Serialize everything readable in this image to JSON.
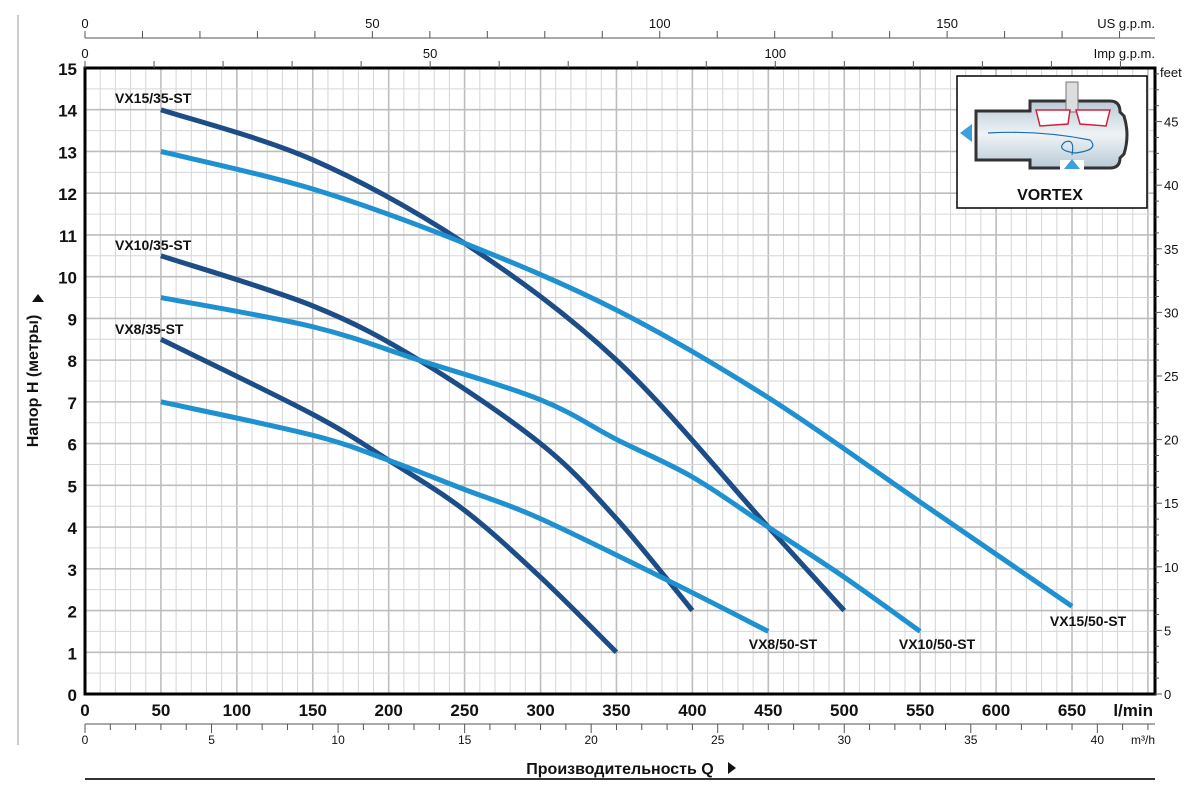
{
  "chart_data": {
    "type": "line",
    "title": "",
    "xlabel": "Производительность Q",
    "ylabel": "Напор H (метры)",
    "x_unit": "l/min",
    "xlim": [
      0,
      705
    ],
    "ylim": [
      0,
      15
    ],
    "grid": true,
    "x_ticks": [
      0,
      50,
      100,
      150,
      200,
      250,
      300,
      350,
      400,
      450,
      500,
      550,
      600,
      650
    ],
    "y_ticks": [
      0,
      1,
      2,
      3,
      4,
      5,
      6,
      7,
      8,
      9,
      10,
      11,
      12,
      13,
      14,
      15
    ],
    "secondary_axes": {
      "us_gpm": {
        "label": "US g.p.m.",
        "ticks": [
          0,
          50,
          100,
          150
        ]
      },
      "imp_gpm": {
        "label": "Imp g.p.m.",
        "ticks": [
          0,
          50,
          100
        ]
      },
      "m3h": {
        "label": "m³/h",
        "ticks": [
          0,
          5,
          10,
          15,
          20,
          25,
          30,
          35,
          40
        ]
      },
      "feet": {
        "label": "feet",
        "ticks": [
          0,
          5,
          10,
          15,
          20,
          25,
          30,
          35,
          40,
          45
        ]
      }
    },
    "series": [
      {
        "name": "VX15/35-ST",
        "color": "#1c4d86",
        "points": [
          [
            50,
            14
          ],
          [
            150,
            12.8
          ],
          [
            250,
            10.8
          ],
          [
            350,
            8
          ],
          [
            450,
            4
          ],
          [
            500,
            2
          ]
        ]
      },
      {
        "name": "VX15/50-ST",
        "color": "#1f91d0",
        "points": [
          [
            50,
            13
          ],
          [
            150,
            12.1
          ],
          [
            250,
            10.8
          ],
          [
            350,
            9.2
          ],
          [
            450,
            7.1
          ],
          [
            550,
            4.6
          ],
          [
            650,
            2.1
          ]
        ]
      },
      {
        "name": "VX10/35-ST",
        "color": "#1c4d86",
        "points": [
          [
            50,
            10.5
          ],
          [
            150,
            9.3
          ],
          [
            220,
            8
          ],
          [
            300,
            6
          ],
          [
            350,
            4.2
          ],
          [
            400,
            2
          ]
        ]
      },
      {
        "name": "VX10/50-ST",
        "color": "#1f91d0",
        "points": [
          [
            50,
            9.5
          ],
          [
            150,
            8.8
          ],
          [
            220,
            8
          ],
          [
            300,
            7.05
          ],
          [
            350,
            6.1
          ],
          [
            400,
            5.2
          ],
          [
            450,
            4
          ],
          [
            500,
            2.8
          ],
          [
            550,
            1.5
          ]
        ]
      },
      {
        "name": "VX8/35-ST",
        "color": "#1c4d86",
        "points": [
          [
            50,
            8.5
          ],
          [
            150,
            6.7
          ],
          [
            200,
            5.6
          ],
          [
            250,
            4.4
          ],
          [
            300,
            2.8
          ],
          [
            350,
            1
          ]
        ]
      },
      {
        "name": "VX8/50-ST",
        "color": "#1f91d0",
        "points": [
          [
            50,
            7
          ],
          [
            150,
            6.2
          ],
          [
            200,
            5.6
          ],
          [
            250,
            4.9
          ],
          [
            300,
            4.2
          ],
          [
            385,
            2.7
          ],
          [
            450,
            1.5
          ]
        ]
      }
    ],
    "inset": {
      "label": "VORTEX"
    }
  }
}
